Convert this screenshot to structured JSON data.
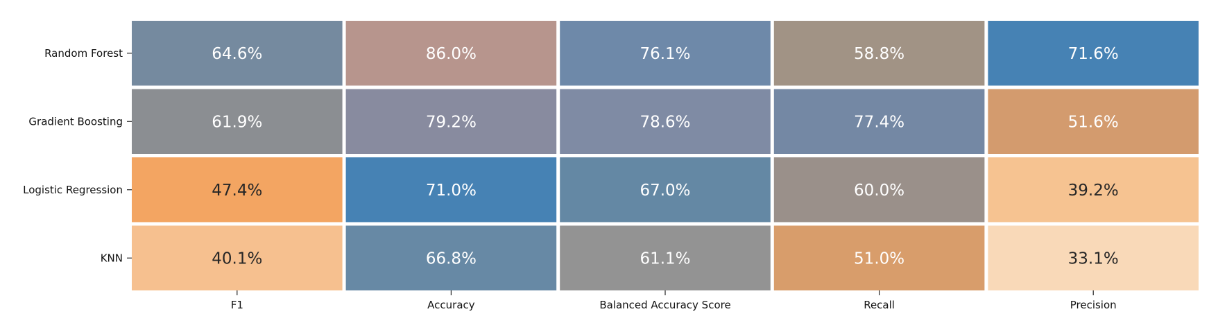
{
  "chart_data": {
    "type": "heatmap",
    "rows": [
      "Random Forest",
      "Gradient Boosting",
      "Logistic Regression",
      "KNN"
    ],
    "columns": [
      "F1",
      "Accuracy",
      "Balanced Accuracy Score",
      "Recall",
      "Precision"
    ],
    "values": [
      [
        64.6,
        86.0,
        76.1,
        58.8,
        71.6
      ],
      [
        61.9,
        79.2,
        78.6,
        77.4,
        51.6
      ],
      [
        47.4,
        71.0,
        67.0,
        60.0,
        39.2
      ],
      [
        40.1,
        66.8,
        61.1,
        51.0,
        33.1
      ]
    ],
    "value_format": "%",
    "colors": [
      [
        "#758a9f",
        "#b7958d",
        "#6e89a9",
        "#a19385",
        "#4682b4"
      ],
      [
        "#8b8e92",
        "#888b9f",
        "#7f8ba4",
        "#7488a4",
        "#d39b6e"
      ],
      [
        "#f3a562",
        "#4682b4",
        "#6488a4",
        "#9a908a",
        "#f6c391"
      ],
      [
        "#f6c08f",
        "#6789a5",
        "#939393",
        "#d89d6b",
        "#f9d9b8"
      ]
    ],
    "text_colors": [
      [
        "#ffffff",
        "#ffffff",
        "#ffffff",
        "#ffffff",
        "#ffffff"
      ],
      [
        "#ffffff",
        "#ffffff",
        "#ffffff",
        "#ffffff",
        "#ffffff"
      ],
      [
        "#262626",
        "#ffffff",
        "#ffffff",
        "#ffffff",
        "#262626"
      ],
      [
        "#262626",
        "#ffffff",
        "#ffffff",
        "#ffffff",
        "#262626"
      ]
    ],
    "cell_border_color": "#ffffff",
    "colorbar": false,
    "title": "",
    "xlabel": "",
    "ylabel": ""
  }
}
